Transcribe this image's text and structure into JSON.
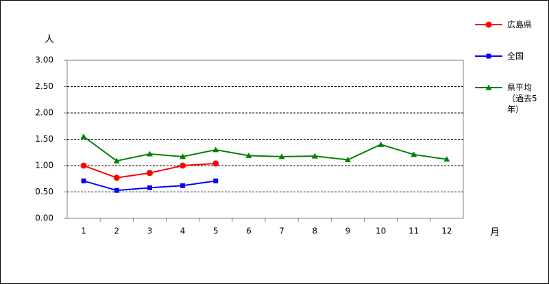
{
  "chart_data": {
    "type": "line",
    "y_label": "人",
    "x_label": "月",
    "categories": [
      "1",
      "2",
      "3",
      "4",
      "5",
      "6",
      "7",
      "8",
      "9",
      "10",
      "11",
      "12"
    ],
    "series": [
      {
        "name": "広島県",
        "color": "#ff0000",
        "marker": "circle",
        "values": [
          1.0,
          0.77,
          0.86,
          1.0,
          1.04,
          null,
          null,
          null,
          null,
          null,
          null,
          null
        ]
      },
      {
        "name": "全国",
        "color": "#0000ff",
        "marker": "square",
        "values": [
          0.71,
          0.53,
          0.58,
          0.62,
          0.71,
          null,
          null,
          null,
          null,
          null,
          null,
          null
        ]
      },
      {
        "name": "県平均（過去5年）",
        "color": "#008000",
        "marker": "triangle",
        "values": [
          1.55,
          1.09,
          1.22,
          1.17,
          1.3,
          1.19,
          1.17,
          1.18,
          1.11,
          1.4,
          1.21,
          1.12
        ]
      }
    ],
    "ylim": [
      0,
      3
    ],
    "yticks": [
      {
        "value": 0,
        "label": "0.00"
      },
      {
        "value": 0.5,
        "label": "0.50"
      },
      {
        "value": 1,
        "label": "1.00"
      },
      {
        "value": 1.5,
        "label": "1.50"
      },
      {
        "value": 2,
        "label": "2.00"
      },
      {
        "value": 2.5,
        "label": "2.50"
      },
      {
        "value": 3,
        "label": "3.00"
      }
    ],
    "grid": true,
    "legend": "right"
  }
}
